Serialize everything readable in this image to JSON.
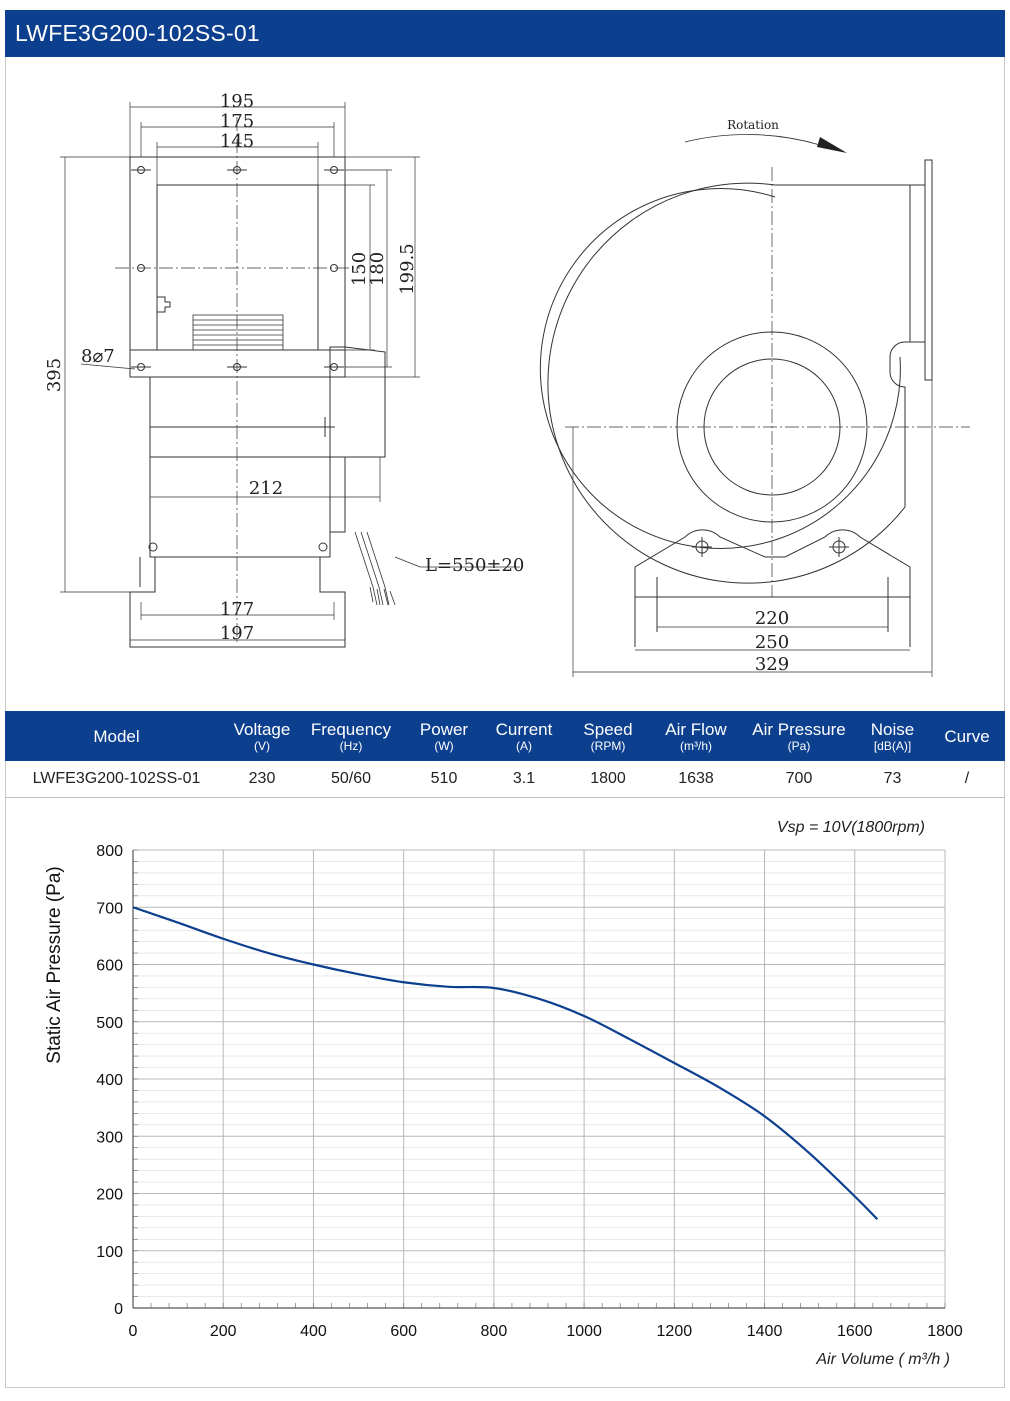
{
  "header": {
    "title": "LWFE3G200-102SS-01"
  },
  "drawing": {
    "front_dims": {
      "w195": "195",
      "w175": "175",
      "w145": "145",
      "h150": "150",
      "h180": "180",
      "h199": "199.5",
      "h395": "395",
      "holes": "8⌀7",
      "w212": "212",
      "w177": "177",
      "w197": "197",
      "cable": "L=550±20"
    },
    "side_dims": {
      "rotation": "Rotation",
      "w220": "220",
      "w250": "250",
      "w329": "329"
    }
  },
  "table": {
    "headers": [
      {
        "label": "Model",
        "unit": ""
      },
      {
        "label": "Voltage",
        "unit": "(V)"
      },
      {
        "label": "Frequency",
        "unit": "(Hz)"
      },
      {
        "label": "Power",
        "unit": "(W)"
      },
      {
        "label": "Current",
        "unit": "(A)"
      },
      {
        "label": "Speed",
        "unit": "(RPM)"
      },
      {
        "label": "Air Flow",
        "unit": "(m³/h)"
      },
      {
        "label": "Air Pressure",
        "unit": "(Pa)"
      },
      {
        "label": "Noise",
        "unit": "[dB(A)]"
      },
      {
        "label": "Curve",
        "unit": ""
      }
    ],
    "row": [
      "LWFE3G200-102SS-01",
      "230",
      "50/60",
      "510",
      "3.1",
      "1800",
      "1638",
      "700",
      "73",
      "/"
    ]
  },
  "chart_data": {
    "type": "line",
    "annotation": "Vsp = 10V(1800rpm)",
    "xlabel": "Air Volume ( m³/h )",
    "ylabel": "Static Air Pressure  (Pa)",
    "xlim": [
      0,
      1800
    ],
    "ylim": [
      0,
      800
    ],
    "xticks": [
      0,
      200,
      400,
      600,
      800,
      1000,
      1200,
      1400,
      1600,
      1800
    ],
    "yticks": [
      0,
      100,
      200,
      300,
      400,
      500,
      600,
      700,
      800
    ],
    "grid": true,
    "line_color": "#0d3f8f",
    "series": [
      {
        "x": [
          0,
          100,
          200,
          300,
          400,
          500,
          600,
          700,
          800,
          900,
          1000,
          1100,
          1200,
          1300,
          1400,
          1500,
          1600,
          1650
        ],
        "y": [
          700,
          673,
          645,
          620,
          600,
          583,
          569,
          561,
          559,
          540,
          510,
          470,
          428,
          385,
          335,
          270,
          195,
          155
        ]
      }
    ]
  }
}
